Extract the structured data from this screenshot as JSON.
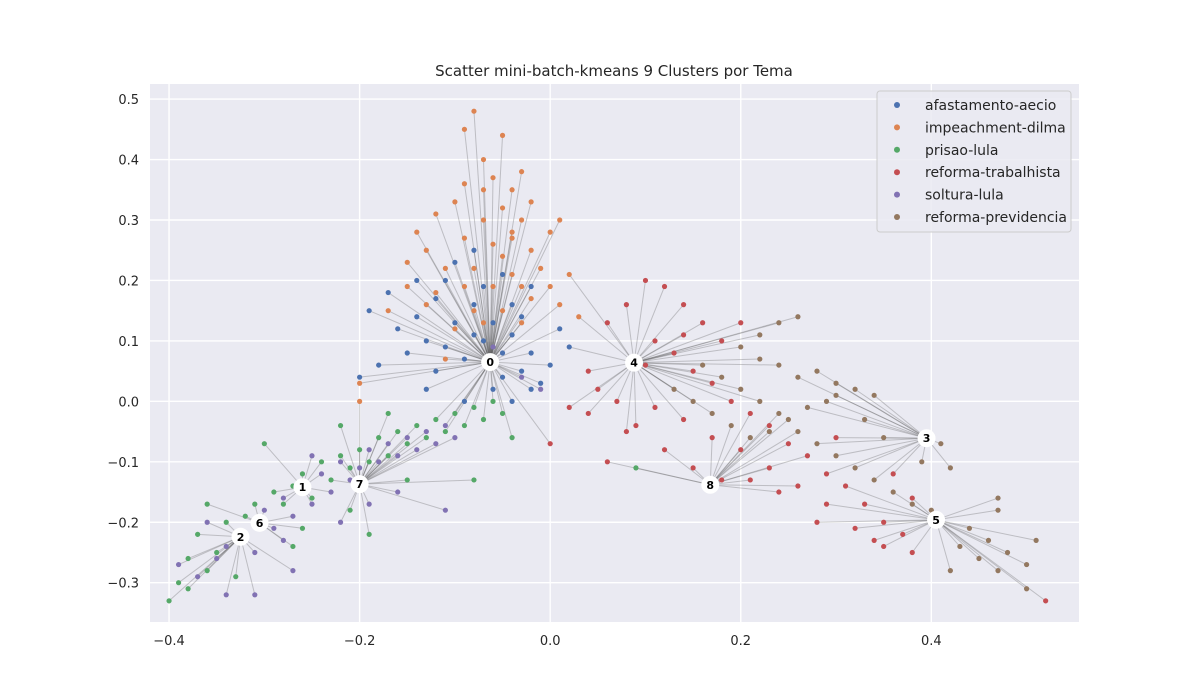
{
  "chart_data": {
    "type": "scatter",
    "title": "Scatter mini-batch-kmeans 9 Clusters por Tema",
    "xlabel": "",
    "ylabel": "",
    "xlim": [
      -0.42,
      0.555
    ],
    "ylim": [
      -0.365,
      0.525
    ],
    "xticks": [
      -0.4,
      -0.2,
      0.0,
      0.2,
      0.4
    ],
    "xtick_labels": [
      "−0.4",
      "−0.2",
      "0.0",
      "0.2",
      "0.4"
    ],
    "yticks": [
      -0.3,
      -0.2,
      -0.1,
      0.0,
      0.1,
      0.2,
      0.3,
      0.4,
      0.5
    ],
    "ytick_labels": [
      "−0.3",
      "−0.2",
      "−0.1",
      "0.0",
      "0.1",
      "0.2",
      "0.3",
      "0.4",
      "0.5"
    ],
    "grid": true,
    "legend_position": "top-right",
    "series": [
      {
        "name": "afastamento-aecio",
        "color": "#4c72b0",
        "points": [
          [
            -0.19,
            0.15
          ],
          [
            -0.17,
            0.18
          ],
          [
            -0.16,
            0.12
          ],
          [
            -0.14,
            0.14
          ],
          [
            -0.13,
            0.1
          ],
          [
            -0.12,
            0.17
          ],
          [
            -0.11,
            0.2
          ],
          [
            -0.1,
            0.13
          ],
          [
            -0.1,
            0.23
          ],
          [
            -0.09,
            0.07
          ],
          [
            -0.08,
            0.16
          ],
          [
            -0.08,
            0.25
          ],
          [
            -0.07,
            0.1
          ],
          [
            -0.07,
            0.19
          ],
          [
            -0.06,
            0.13
          ],
          [
            -0.05,
            0.08
          ],
          [
            -0.05,
            0.04
          ],
          [
            -0.04,
            0.16
          ],
          [
            -0.04,
            0.11
          ],
          [
            -0.03,
            0.05
          ],
          [
            -0.03,
            0.14
          ],
          [
            -0.02,
            0.08
          ],
          [
            -0.02,
            0.19
          ],
          [
            -0.01,
            0.03
          ],
          [
            0.0,
            0.06
          ],
          [
            0.01,
            0.12
          ],
          [
            0.02,
            0.09
          ],
          [
            -0.12,
            0.05
          ],
          [
            -0.15,
            0.08
          ],
          [
            -0.18,
            0.06
          ],
          [
            -0.09,
            0.0
          ],
          [
            -0.06,
            0.02
          ],
          [
            -0.11,
            0.09
          ],
          [
            -0.13,
            0.02
          ],
          [
            -0.2,
            0.04
          ],
          [
            -0.02,
            0.02
          ],
          [
            -0.05,
            0.21
          ],
          [
            -0.08,
            0.11
          ],
          [
            -0.04,
            0.0
          ],
          [
            -0.14,
            0.2
          ]
        ]
      },
      {
        "name": "impeachment-dilma",
        "color": "#dd8452",
        "points": [
          [
            -0.08,
            0.48
          ],
          [
            -0.09,
            0.45
          ],
          [
            -0.05,
            0.44
          ],
          [
            -0.07,
            0.4
          ],
          [
            -0.06,
            0.37
          ],
          [
            -0.04,
            0.35
          ],
          [
            -0.09,
            0.36
          ],
          [
            -0.1,
            0.33
          ],
          [
            -0.05,
            0.32
          ],
          [
            -0.03,
            0.3
          ],
          [
            -0.12,
            0.31
          ],
          [
            -0.07,
            0.3
          ],
          [
            -0.04,
            0.27
          ],
          [
            -0.06,
            0.26
          ],
          [
            -0.02,
            0.25
          ],
          [
            -0.09,
            0.27
          ],
          [
            -0.13,
            0.25
          ],
          [
            -0.15,
            0.23
          ],
          [
            -0.11,
            0.22
          ],
          [
            -0.08,
            0.22
          ],
          [
            -0.04,
            0.21
          ],
          [
            -0.01,
            0.22
          ],
          [
            0.0,
            0.19
          ],
          [
            -0.03,
            0.19
          ],
          [
            -0.06,
            0.19
          ],
          [
            -0.09,
            0.19
          ],
          [
            -0.12,
            0.18
          ],
          [
            -0.15,
            0.19
          ],
          [
            -0.17,
            0.15
          ],
          [
            -0.13,
            0.16
          ],
          [
            -0.08,
            0.15
          ],
          [
            -0.05,
            0.15
          ],
          [
            -0.02,
            0.17
          ],
          [
            0.01,
            0.16
          ],
          [
            0.03,
            0.14
          ],
          [
            -0.03,
            0.13
          ],
          [
            -0.1,
            0.12
          ],
          [
            -0.07,
            0.13
          ],
          [
            0.02,
            0.21
          ],
          [
            -0.05,
            0.24
          ],
          [
            -0.03,
            0.38
          ],
          [
            -0.02,
            0.33
          ],
          [
            0.0,
            0.28
          ],
          [
            0.01,
            0.3
          ],
          [
            -0.14,
            0.28
          ],
          [
            -0.2,
            0.03
          ],
          [
            -0.2,
            0.0
          ],
          [
            -0.11,
            0.07
          ],
          [
            -0.04,
            0.28
          ],
          [
            -0.07,
            0.35
          ]
        ]
      },
      {
        "name": "prisao-lula",
        "color": "#55a868",
        "points": [
          [
            -0.4,
            -0.33
          ],
          [
            -0.39,
            -0.3
          ],
          [
            -0.38,
            -0.26
          ],
          [
            -0.37,
            -0.22
          ],
          [
            -0.36,
            -0.28
          ],
          [
            -0.35,
            -0.25
          ],
          [
            -0.34,
            -0.2
          ],
          [
            -0.33,
            -0.23
          ],
          [
            -0.32,
            -0.19
          ],
          [
            -0.31,
            -0.17
          ],
          [
            -0.3,
            -0.2
          ],
          [
            -0.29,
            -0.15
          ],
          [
            -0.28,
            -0.17
          ],
          [
            -0.27,
            -0.14
          ],
          [
            -0.26,
            -0.12
          ],
          [
            -0.25,
            -0.16
          ],
          [
            -0.24,
            -0.1
          ],
          [
            -0.23,
            -0.13
          ],
          [
            -0.22,
            -0.09
          ],
          [
            -0.21,
            -0.11
          ],
          [
            -0.2,
            -0.08
          ],
          [
            -0.19,
            -0.1
          ],
          [
            -0.18,
            -0.06
          ],
          [
            -0.17,
            -0.09
          ],
          [
            -0.16,
            -0.05
          ],
          [
            -0.15,
            -0.07
          ],
          [
            -0.14,
            -0.04
          ],
          [
            -0.13,
            -0.06
          ],
          [
            -0.12,
            -0.03
          ],
          [
            -0.11,
            -0.05
          ],
          [
            -0.1,
            -0.02
          ],
          [
            -0.09,
            -0.04
          ],
          [
            -0.08,
            -0.01
          ],
          [
            -0.07,
            -0.03
          ],
          [
            -0.06,
            0.0
          ],
          [
            -0.05,
            -0.02
          ],
          [
            -0.04,
            -0.06
          ],
          [
            -0.3,
            -0.07
          ],
          [
            -0.22,
            -0.04
          ],
          [
            -0.08,
            -0.13
          ],
          [
            -0.21,
            -0.18
          ],
          [
            -0.19,
            -0.22
          ],
          [
            -0.38,
            -0.31
          ],
          [
            -0.36,
            -0.17
          ],
          [
            0.09,
            -0.11
          ],
          [
            -0.17,
            -0.02
          ],
          [
            -0.15,
            -0.13
          ],
          [
            -0.26,
            -0.21
          ],
          [
            -0.33,
            -0.29
          ],
          [
            -0.27,
            -0.24
          ]
        ]
      },
      {
        "name": "reforma-trabalhista",
        "color": "#c44e52",
        "points": [
          [
            0.1,
            0.2
          ],
          [
            0.12,
            0.19
          ],
          [
            0.14,
            0.16
          ],
          [
            0.16,
            0.13
          ],
          [
            0.08,
            0.16
          ],
          [
            0.06,
            0.13
          ],
          [
            0.11,
            0.1
          ],
          [
            0.13,
            0.08
          ],
          [
            0.15,
            0.05
          ],
          [
            0.17,
            0.03
          ],
          [
            0.19,
            0.0
          ],
          [
            0.21,
            -0.02
          ],
          [
            0.23,
            -0.04
          ],
          [
            0.25,
            -0.07
          ],
          [
            0.27,
            -0.09
          ],
          [
            0.29,
            -0.12
          ],
          [
            0.31,
            -0.14
          ],
          [
            0.33,
            -0.17
          ],
          [
            0.35,
            -0.2
          ],
          [
            0.37,
            -0.22
          ],
          [
            0.38,
            -0.25
          ],
          [
            0.35,
            -0.24
          ],
          [
            0.32,
            -0.21
          ],
          [
            0.29,
            -0.17
          ],
          [
            0.26,
            -0.14
          ],
          [
            0.23,
            -0.11
          ],
          [
            0.2,
            -0.08
          ],
          [
            0.17,
            -0.06
          ],
          [
            0.14,
            -0.03
          ],
          [
            0.11,
            -0.01
          ],
          [
            0.08,
            -0.05
          ],
          [
            0.06,
            -0.1
          ],
          [
            0.04,
            -0.02
          ],
          [
            0.02,
            -0.01
          ],
          [
            0.0,
            -0.07
          ],
          [
            0.05,
            0.02
          ],
          [
            0.07,
            0.0
          ],
          [
            0.09,
            -0.04
          ],
          [
            0.12,
            -0.08
          ],
          [
            0.15,
            -0.11
          ],
          [
            0.18,
            -0.13
          ],
          [
            0.21,
            -0.13
          ],
          [
            0.24,
            -0.15
          ],
          [
            0.28,
            -0.2
          ],
          [
            0.34,
            -0.23
          ],
          [
            0.38,
            -0.16
          ],
          [
            0.36,
            -0.12
          ],
          [
            0.18,
            0.1
          ],
          [
            0.2,
            0.13
          ],
          [
            0.14,
            0.11
          ],
          [
            0.52,
            -0.33
          ],
          [
            0.04,
            0.05
          ],
          [
            0.1,
            0.06
          ],
          [
            0.3,
            -0.06
          ]
        ]
      },
      {
        "name": "soltura-lula",
        "color": "#8172b3",
        "points": [
          [
            -0.39,
            -0.27
          ],
          [
            -0.37,
            -0.29
          ],
          [
            -0.35,
            -0.26
          ],
          [
            -0.34,
            -0.24
          ],
          [
            -0.32,
            -0.22
          ],
          [
            -0.31,
            -0.25
          ],
          [
            -0.3,
            -0.18
          ],
          [
            -0.29,
            -0.21
          ],
          [
            -0.28,
            -0.16
          ],
          [
            -0.27,
            -0.19
          ],
          [
            -0.26,
            -0.14
          ],
          [
            -0.25,
            -0.17
          ],
          [
            -0.24,
            -0.12
          ],
          [
            -0.23,
            -0.15
          ],
          [
            -0.22,
            -0.1
          ],
          [
            -0.21,
            -0.13
          ],
          [
            -0.2,
            -0.11
          ],
          [
            -0.19,
            -0.08
          ],
          [
            -0.18,
            -0.1
          ],
          [
            -0.17,
            -0.07
          ],
          [
            -0.16,
            -0.09
          ],
          [
            -0.15,
            -0.06
          ],
          [
            -0.14,
            -0.08
          ],
          [
            -0.13,
            -0.05
          ],
          [
            -0.12,
            -0.07
          ],
          [
            -0.11,
            -0.04
          ],
          [
            -0.1,
            -0.06
          ],
          [
            -0.34,
            -0.32
          ],
          [
            -0.31,
            -0.32
          ],
          [
            -0.27,
            -0.28
          ],
          [
            -0.11,
            -0.18
          ],
          [
            -0.22,
            -0.2
          ],
          [
            -0.36,
            -0.2
          ],
          [
            -0.25,
            -0.09
          ],
          [
            -0.16,
            -0.15
          ],
          [
            -0.06,
            0.09
          ],
          [
            -0.03,
            0.04
          ],
          [
            -0.01,
            0.02
          ],
          [
            -0.28,
            -0.23
          ],
          [
            -0.19,
            -0.17
          ]
        ]
      },
      {
        "name": "reforma-previdencia",
        "color": "#937860",
        "points": [
          [
            0.26,
            0.14
          ],
          [
            0.24,
            0.13
          ],
          [
            0.22,
            0.11
          ],
          [
            0.2,
            0.09
          ],
          [
            0.22,
            0.07
          ],
          [
            0.24,
            0.06
          ],
          [
            0.26,
            0.04
          ],
          [
            0.28,
            0.05
          ],
          [
            0.3,
            0.03
          ],
          [
            0.32,
            0.02
          ],
          [
            0.34,
            0.01
          ],
          [
            0.29,
            0.0
          ],
          [
            0.27,
            -0.01
          ],
          [
            0.25,
            -0.03
          ],
          [
            0.23,
            -0.05
          ],
          [
            0.21,
            -0.06
          ],
          [
            0.19,
            -0.04
          ],
          [
            0.17,
            -0.02
          ],
          [
            0.15,
            0.0
          ],
          [
            0.13,
            0.02
          ],
          [
            0.16,
            0.06
          ],
          [
            0.18,
            0.04
          ],
          [
            0.2,
            0.02
          ],
          [
            0.22,
            0.0
          ],
          [
            0.24,
            -0.02
          ],
          [
            0.26,
            -0.05
          ],
          [
            0.28,
            -0.07
          ],
          [
            0.3,
            -0.09
          ],
          [
            0.32,
            -0.11
          ],
          [
            0.34,
            -0.13
          ],
          [
            0.36,
            -0.15
          ],
          [
            0.38,
            -0.17
          ],
          [
            0.4,
            -0.18
          ],
          [
            0.42,
            -0.11
          ],
          [
            0.41,
            -0.07
          ],
          [
            0.39,
            -0.1
          ],
          [
            0.44,
            -0.21
          ],
          [
            0.46,
            -0.23
          ],
          [
            0.48,
            -0.25
          ],
          [
            0.5,
            -0.27
          ],
          [
            0.47,
            -0.28
          ],
          [
            0.45,
            -0.26
          ],
          [
            0.43,
            -0.24
          ],
          [
            0.42,
            -0.28
          ],
          [
            0.5,
            -0.31
          ],
          [
            0.51,
            -0.23
          ],
          [
            0.47,
            -0.18
          ],
          [
            0.47,
            -0.16
          ],
          [
            0.3,
            0.01
          ],
          [
            0.33,
            -0.03
          ],
          [
            0.35,
            -0.06
          ]
        ]
      }
    ],
    "centroids": [
      {
        "label": "0",
        "x": -0.063,
        "y": 0.065
      },
      {
        "label": "1",
        "x": -0.26,
        "y": -0.142
      },
      {
        "label": "2",
        "x": -0.325,
        "y": -0.224
      },
      {
        "label": "3",
        "x": 0.395,
        "y": -0.061
      },
      {
        "label": "4",
        "x": 0.088,
        "y": 0.064
      },
      {
        "label": "5",
        "x": 0.405,
        "y": -0.196
      },
      {
        "label": "6",
        "x": -0.305,
        "y": -0.201
      },
      {
        "label": "7",
        "x": -0.2,
        "y": -0.137
      },
      {
        "label": "8",
        "x": 0.168,
        "y": -0.138
      }
    ]
  }
}
